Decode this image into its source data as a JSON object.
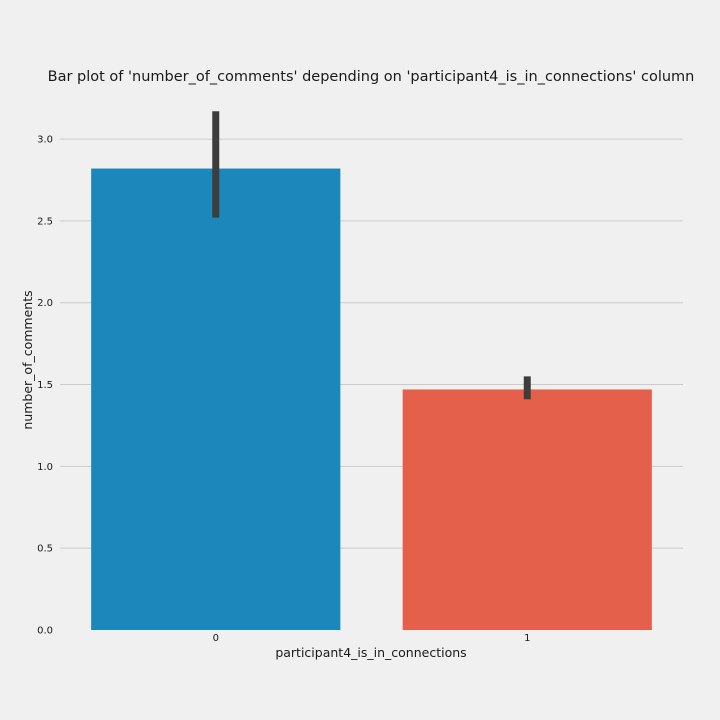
{
  "chart_data": {
    "type": "bar",
    "title": "Bar plot of 'number_of_comments' depending on 'participant4_is_in_connections' column",
    "xlabel": "participant4_is_in_connections",
    "ylabel": "number_of_comments",
    "categories": [
      "0",
      "1"
    ],
    "values": [
      2.82,
      1.47
    ],
    "error_bars": [
      {
        "low": 2.52,
        "high": 3.17
      },
      {
        "low": 1.41,
        "high": 1.55
      }
    ],
    "ylim": [
      0,
      3.3
    ],
    "yticks": [
      0.0,
      0.5,
      1.0,
      1.5,
      2.0,
      2.5,
      3.0
    ],
    "ytick_labels": [
      "0.0",
      "0.5",
      "1.0",
      "1.5",
      "2.0",
      "2.5",
      "3.0"
    ],
    "grid": "horizontal",
    "colors": [
      "#1b87ba",
      "#e5604a"
    ],
    "error_bar_color": "#3d3d3d"
  }
}
